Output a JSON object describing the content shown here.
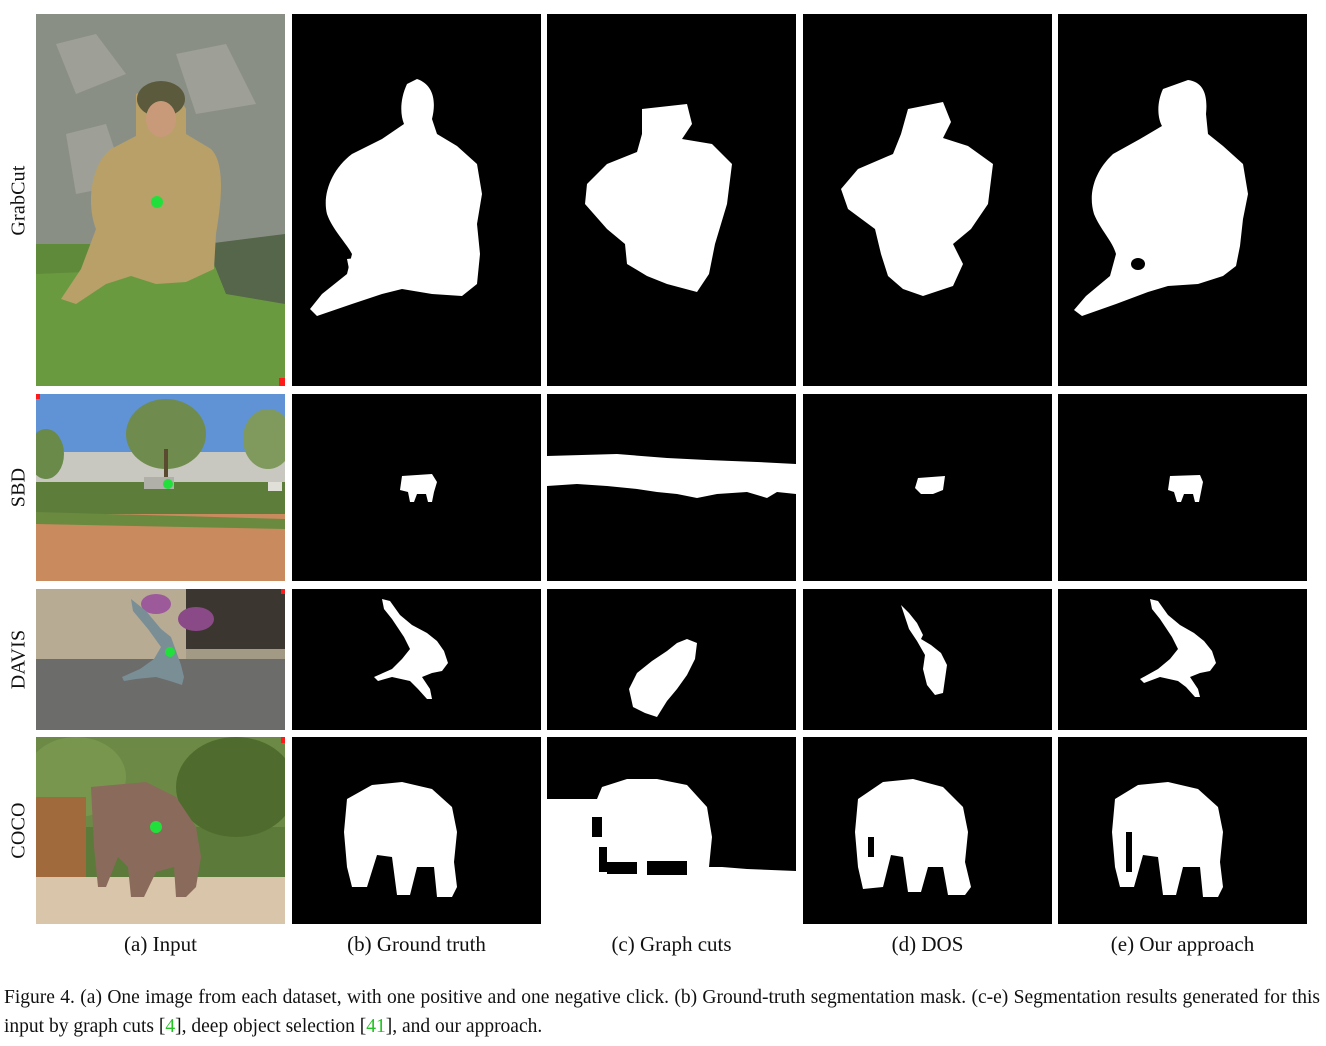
{
  "figure": {
    "rows": [
      {
        "label": "GrabCut"
      },
      {
        "label": "SBD"
      },
      {
        "label": "DAVIS"
      },
      {
        "label": "COCO"
      }
    ],
    "columns": [
      {
        "label": "(a) Input"
      },
      {
        "label": "(b) Ground truth"
      },
      {
        "label": "(c) Graph cuts"
      },
      {
        "label": "(d) DOS"
      },
      {
        "label": "(e) Our approach"
      }
    ],
    "caption": {
      "part1": "Figure 4. (a) One image from each dataset, with one positive and one negative click. (b) Ground-truth segmentation mask. (c-e) Segmentation results generated for this input by graph cuts [",
      "ref1": "4",
      "part2": "], deep object selection [",
      "ref2": "41",
      "part3": "], and our approach."
    },
    "colors": {
      "positive_click": "#22e03c",
      "negative_click": "#ff1a1a",
      "mask_foreground": "#ffffff",
      "mask_background": "#000000",
      "citation": "#22c322"
    }
  }
}
